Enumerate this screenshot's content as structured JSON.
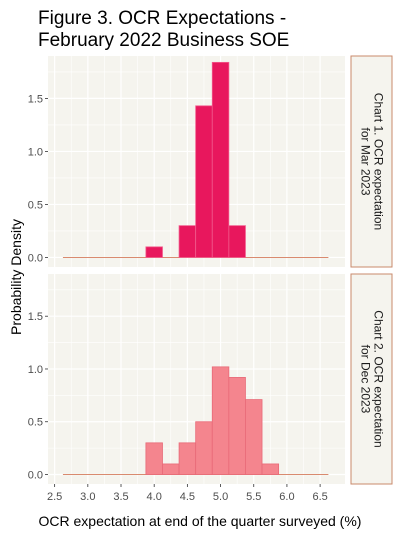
{
  "figure": {
    "title_line1": "Figure 3. OCR Expectations -",
    "title_line2": "February 2022 Business SOE"
  },
  "colors": {
    "panel_bg": "#f5f4ee",
    "grid": "#ffffff",
    "baseline": "#d98a6f",
    "strip_border": "#c98a6b",
    "chart1_fill": "#e8175d",
    "chart1_edge": "#f25a8c",
    "chart2_fill": "#f4858e",
    "chart2_edge": "#e86a78",
    "tick_text": "#4d4d4d"
  },
  "chart_data": [
    {
      "type": "bar",
      "title": "Chart 1. OCR expectation for Mar 2023",
      "strip_lines": [
        "Chart 1. OCR expectation",
        "for Mar 2023"
      ],
      "xlabel": "OCR expectation at end of the quarter surveyed (%)",
      "ylabel": "Probability Density",
      "bin_width": 0.25,
      "x": [
        4.0,
        4.25,
        4.5,
        4.75,
        5.0,
        5.25
      ],
      "values": [
        0.1,
        0.0,
        0.3,
        1.43,
        1.84,
        0.3
      ],
      "baseline_range": [
        2.625,
        6.625
      ],
      "xlim": [
        2.4,
        6.875
      ],
      "ylim": [
        -0.09,
        1.9
      ],
      "x_ticks": [
        2.5,
        3.0,
        3.5,
        4.0,
        4.5,
        5.0,
        5.5,
        6.0,
        6.5
      ],
      "y_ticks": [
        "0.0",
        "0.5",
        "1.0",
        "1.5"
      ],
      "grid": true
    },
    {
      "type": "bar",
      "title": "Chart 2. OCR expectation for Dec 2023",
      "strip_lines": [
        "Chart 2. OCR expectation",
        "for Dec 2023"
      ],
      "xlabel": "OCR expectation at end of the quarter surveyed (%)",
      "ylabel": "Probability Density",
      "bin_width": 0.25,
      "x": [
        4.0,
        4.25,
        4.5,
        4.75,
        5.0,
        5.25,
        5.5,
        5.75
      ],
      "values": [
        0.3,
        0.1,
        0.3,
        0.5,
        1.02,
        0.92,
        0.71,
        0.1
      ],
      "baseline_range": [
        2.625,
        6.625
      ],
      "xlim": [
        2.4,
        6.875
      ],
      "ylim": [
        -0.09,
        1.9
      ],
      "x_ticks": [
        2.5,
        3.0,
        3.5,
        4.0,
        4.5,
        5.0,
        5.5,
        6.0,
        6.5
      ],
      "x_tick_labels": [
        "2.5",
        "3.0",
        "3.5",
        "4.0",
        "4.5",
        "5.0",
        "5.5",
        "6.0",
        "6.5"
      ],
      "y_ticks": [
        "0.0",
        "0.5",
        "1.0",
        "1.5"
      ],
      "grid": true
    }
  ]
}
